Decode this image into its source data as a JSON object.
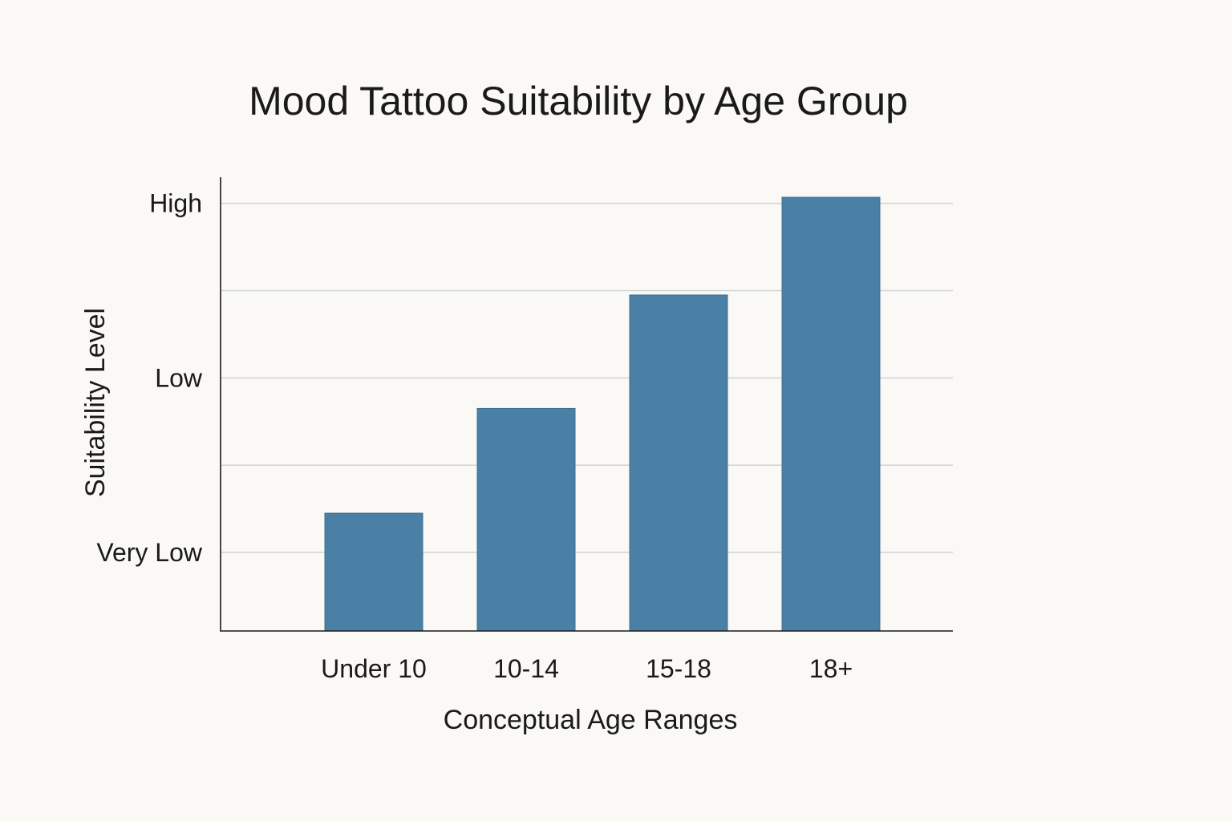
{
  "chart_data": {
    "type": "bar",
    "title": "Mood Tattoo Suitability by Age Group",
    "xlabel": "Conceptual Age Ranges",
    "ylabel": "Suitability Level",
    "categories": [
      "Under 10",
      "10-14",
      "15-18",
      "18+"
    ],
    "values": [
      1.45,
      2.65,
      3.95,
      5.07
    ],
    "y_gridlines": [
      1.0,
      2.0,
      3.0,
      4.0,
      5.0
    ],
    "y_tick_labels": [
      {
        "value": 1.0,
        "label": "Very Low"
      },
      {
        "value": 3.0,
        "label": "Low"
      },
      {
        "value": 5.0,
        "label": "High"
      }
    ],
    "ylim": [
      0.1,
      5.3
    ],
    "grid": true,
    "legend": "none",
    "bar_color": "#4a80a6"
  }
}
